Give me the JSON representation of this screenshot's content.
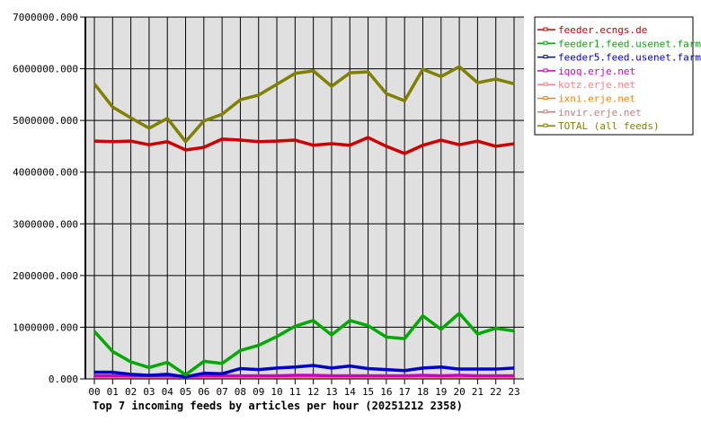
{
  "chart_data": {
    "type": "line",
    "title": "Top 7 incoming feeds by articles per hour (20251212 2358)",
    "xlabel": "",
    "ylabel": "",
    "categories": [
      "00",
      "01",
      "02",
      "03",
      "04",
      "05",
      "06",
      "07",
      "08",
      "09",
      "10",
      "11",
      "12",
      "13",
      "14",
      "15",
      "16",
      "17",
      "18",
      "19",
      "20",
      "21",
      "22",
      "23"
    ],
    "ylim": [
      0,
      7000000
    ],
    "yticks": [
      "0.000",
      "1000000.000",
      "2000000.000",
      "3000000.000",
      "4000000.000",
      "5000000.000",
      "6000000.000",
      "7000000.000"
    ],
    "grid": true,
    "legend_position": "right",
    "plot_background": "#e0e0e0",
    "series": [
      {
        "name": "feeder.ecngs.de",
        "color": "#cc0000",
        "values": [
          4600000,
          4590000,
          4600000,
          4530000,
          4590000,
          4430000,
          4480000,
          4640000,
          4620000,
          4590000,
          4600000,
          4620000,
          4520000,
          4550000,
          4520000,
          4670000,
          4500000,
          4360000,
          4520000,
          4620000,
          4530000,
          4600000,
          4500000,
          4550000
        ]
      },
      {
        "name": "feeder1.feed.usenet.farm",
        "color": "#00aa00",
        "values": [
          920000,
          530000,
          330000,
          220000,
          320000,
          80000,
          340000,
          300000,
          550000,
          650000,
          820000,
          1020000,
          1130000,
          850000,
          1130000,
          1030000,
          810000,
          780000,
          1220000,
          960000,
          1270000,
          870000,
          980000,
          930000
        ]
      },
      {
        "name": "feeder5.feed.usenet.farm",
        "color": "#0000cc",
        "values": [
          130000,
          130000,
          90000,
          70000,
          90000,
          40000,
          110000,
          100000,
          200000,
          180000,
          210000,
          230000,
          260000,
          210000,
          250000,
          200000,
          180000,
          160000,
          210000,
          230000,
          190000,
          190000,
          190000,
          210000
        ]
      },
      {
        "name": "iqoq.erje.net",
        "color": "#cc00cc",
        "values": [
          60000,
          60000,
          60000,
          60000,
          60000,
          50000,
          60000,
          60000,
          60000,
          60000,
          60000,
          70000,
          70000,
          60000,
          60000,
          60000,
          60000,
          60000,
          70000,
          60000,
          70000,
          60000,
          60000,
          60000
        ]
      },
      {
        "name": "kotz.erje.net",
        "color": "#ff8080",
        "values": [
          40000,
          40000,
          40000,
          40000,
          40000,
          40000,
          40000,
          40000,
          40000,
          40000,
          40000,
          40000,
          40000,
          40000,
          40000,
          40000,
          40000,
          40000,
          40000,
          40000,
          40000,
          40000,
          40000,
          40000
        ]
      },
      {
        "name": "ixni.erje.net",
        "color": "#ff8000",
        "values": [
          30000,
          30000,
          30000,
          30000,
          30000,
          30000,
          30000,
          30000,
          30000,
          30000,
          30000,
          30000,
          30000,
          30000,
          30000,
          30000,
          30000,
          30000,
          30000,
          30000,
          30000,
          30000,
          30000,
          30000
        ]
      },
      {
        "name": "invir.erje.net",
        "color": "#c08080",
        "values": [
          20000,
          20000,
          20000,
          20000,
          20000,
          20000,
          20000,
          20000,
          20000,
          20000,
          20000,
          20000,
          20000,
          20000,
          20000,
          20000,
          20000,
          20000,
          20000,
          20000,
          20000,
          20000,
          20000,
          20000
        ]
      },
      {
        "name": "TOTAL (all feeds)",
        "color": "#808000",
        "values": [
          5710000,
          5260000,
          5050000,
          4850000,
          5040000,
          4590000,
          4990000,
          5120000,
          5400000,
          5490000,
          5700000,
          5910000,
          5960000,
          5660000,
          5920000,
          5940000,
          5520000,
          5380000,
          5990000,
          5850000,
          6040000,
          5730000,
          5800000,
          5710000
        ]
      }
    ]
  }
}
